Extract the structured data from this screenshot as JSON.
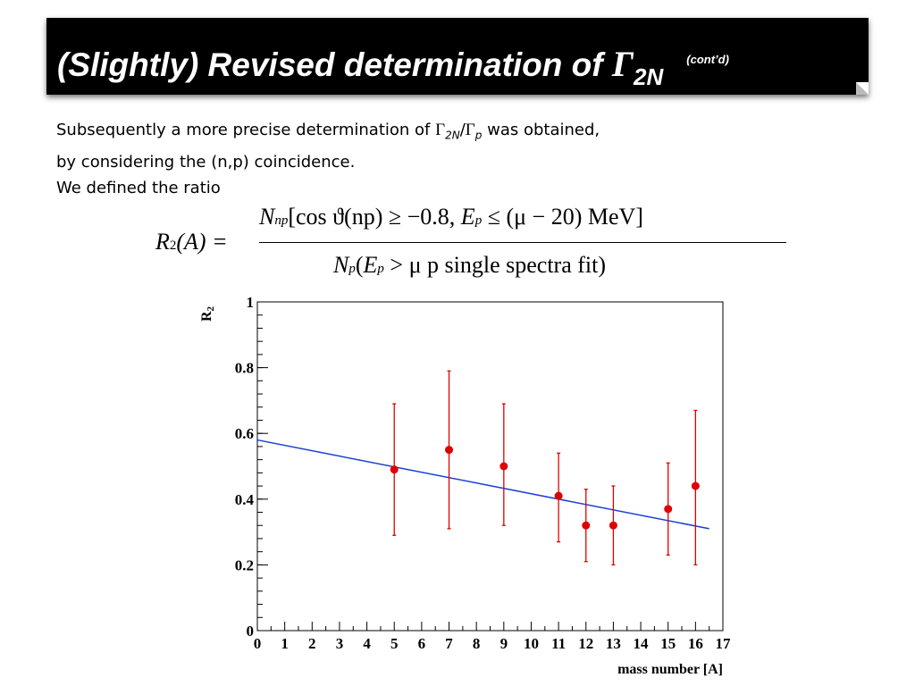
{
  "title": {
    "prefix": "(Slightly) Revised determination of ",
    "gamma": "Γ",
    "subscript": "2N",
    "contd": "(cont’d)"
  },
  "body": {
    "line1_a": "Subsequently a more precise determination of ",
    "gamma": "Γ",
    "sub_2n": "2N",
    "slash": "/",
    "sub_p": "p",
    "line1_b": " was obtained,",
    "line2": "by considering the (n,p) coincidence.",
    "line3": "We defined the ratio"
  },
  "formula": {
    "lhs_R": "R",
    "lhs_sub": "2",
    "lhs_rest": "(A) =",
    "num_N": "N",
    "num_sub": "np",
    "num_text": "[cos ϑ(np) ≥ −0.8,  ",
    "num_E": "E",
    "num_E_sub": "p",
    "num_tail": " ≤ (μ − 20)  MeV]",
    "den_N": "N",
    "den_sub": "p",
    "den_text": "(",
    "den_E": "E",
    "den_E_sub": "p",
    "den_tail": " > μ  p  single spectra fit)"
  },
  "chart_data": {
    "type": "scatter",
    "xlabel": "mass number [A]",
    "ylabel": "R2",
    "xlim": [
      0,
      17
    ],
    "ylim": [
      0,
      1
    ],
    "x_ticks": [
      0,
      1,
      2,
      3,
      4,
      5,
      6,
      7,
      8,
      9,
      10,
      11,
      12,
      13,
      14,
      15,
      16,
      17
    ],
    "y_ticks": [
      0,
      0.2,
      0.4,
      0.6,
      0.8,
      1
    ],
    "y_tick_labels": [
      "0",
      "0.2",
      "0.4",
      "0.6",
      "0.8",
      "1"
    ],
    "points": [
      {
        "x": 5,
        "y": 0.49,
        "ylow": 0.29,
        "yhigh": 0.69
      },
      {
        "x": 7,
        "y": 0.55,
        "ylow": 0.31,
        "yhigh": 0.79
      },
      {
        "x": 9,
        "y": 0.5,
        "ylow": 0.32,
        "yhigh": 0.69
      },
      {
        "x": 11,
        "y": 0.41,
        "ylow": 0.27,
        "yhigh": 0.54
      },
      {
        "x": 12,
        "y": 0.32,
        "ylow": 0.21,
        "yhigh": 0.43
      },
      {
        "x": 13,
        "y": 0.32,
        "ylow": 0.2,
        "yhigh": 0.44
      },
      {
        "x": 15,
        "y": 0.37,
        "ylow": 0.23,
        "yhigh": 0.51
      },
      {
        "x": 16,
        "y": 0.44,
        "ylow": 0.2,
        "yhigh": 0.67
      }
    ],
    "fit_line": {
      "x": [
        0,
        16.5
      ],
      "y": [
        0.58,
        0.31
      ]
    },
    "point_color": "#e00000",
    "line_color": "#1a3fd6"
  }
}
